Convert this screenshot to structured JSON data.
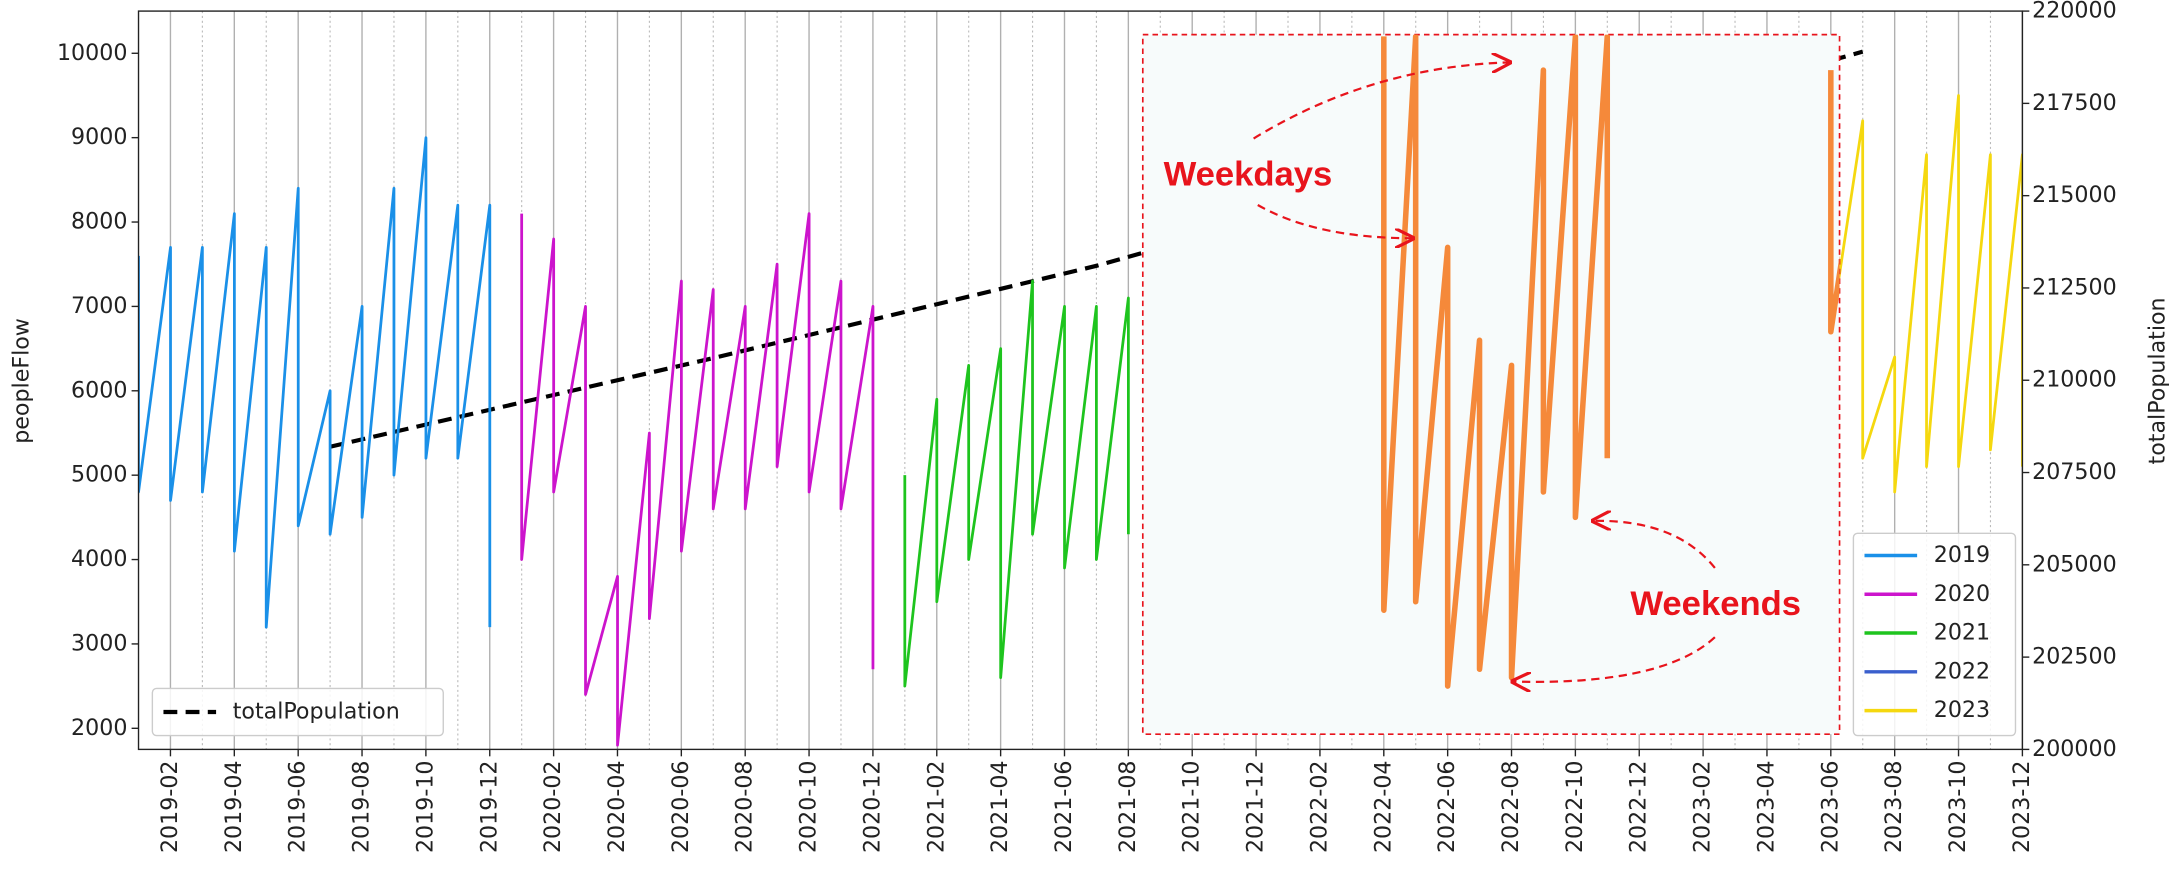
{
  "chart_data": {
    "type": "line",
    "ylabel": "peopleFlow",
    "y2label": "totalPopulation",
    "xlim": [
      "2019-01",
      "2023-12"
    ],
    "ylim": [
      1750,
      10500
    ],
    "y2lim": [
      200000,
      220000
    ],
    "yticks": [
      2000,
      3000,
      4000,
      5000,
      6000,
      7000,
      8000,
      9000,
      10000
    ],
    "y2ticks": [
      200000,
      202500,
      205000,
      207500,
      210000,
      212500,
      215000,
      217500,
      220000
    ],
    "xticks": [
      "2019-02",
      "2019-04",
      "2019-06",
      "2019-08",
      "2019-10",
      "2019-12",
      "2020-02",
      "2020-04",
      "2020-06",
      "2020-08",
      "2020-10",
      "2020-12",
      "2021-02",
      "2021-04",
      "2021-06",
      "2021-08",
      "2021-10",
      "2021-12",
      "2022-02",
      "2022-04",
      "2022-06",
      "2022-08",
      "2022-10",
      "2022-12",
      "2023-02",
      "2023-04",
      "2023-06",
      "2023-08",
      "2023-10",
      "2023-12"
    ],
    "xminorticks": [
      "2019-03",
      "2019-05",
      "2019-07",
      "2019-09",
      "2019-11",
      "2020-01",
      "2020-03",
      "2020-05",
      "2020-07",
      "2020-09",
      "2020-11",
      "2021-01",
      "2021-03",
      "2021-05",
      "2021-07",
      "2021-09",
      "2021-11",
      "2022-01",
      "2022-03",
      "2022-05",
      "2022-07",
      "2022-09",
      "2022-11",
      "2023-01",
      "2023-03",
      "2023-05",
      "2023-07",
      "2023-09",
      "2023-11"
    ],
    "grid": "x",
    "series": [
      {
        "name": "2019",
        "color": "#1a90e8",
        "x": [
          "2019-01",
          "2019-01",
          "2019-02",
          "2019-02",
          "2019-03",
          "2019-03",
          "2019-04",
          "2019-04",
          "2019-05",
          "2019-05",
          "2019-06",
          "2019-06",
          "2019-07",
          "2019-07",
          "2019-08",
          "2019-08",
          "2019-09",
          "2019-09",
          "2019-10",
          "2019-10",
          "2019-11",
          "2019-11",
          "2019-12",
          "2019-12"
        ],
        "values": [
          7600,
          4800,
          7700,
          4700,
          7700,
          4800,
          8100,
          4100,
          7700,
          3200,
          8400,
          4400,
          6000,
          4300,
          7000,
          4500,
          8400,
          5000,
          9000,
          5200,
          8200,
          5200,
          8200,
          3200
        ]
      },
      {
        "name": "2020",
        "color": "#cc14cc",
        "x": [
          "2020-01",
          "2020-01",
          "2020-02",
          "2020-02",
          "2020-03",
          "2020-03",
          "2020-04",
          "2020-04",
          "2020-05",
          "2020-05",
          "2020-06",
          "2020-06",
          "2020-07",
          "2020-07",
          "2020-08",
          "2020-08",
          "2020-09",
          "2020-09",
          "2020-10",
          "2020-10",
          "2020-11",
          "2020-11",
          "2020-12",
          "2020-12"
        ],
        "values": [
          8100,
          4000,
          7800,
          4800,
          7000,
          2400,
          3800,
          1800,
          5500,
          3300,
          7300,
          4100,
          7200,
          4600,
          7000,
          4600,
          7500,
          5100,
          8100,
          4800,
          7300,
          4600,
          7000,
          2700
        ]
      },
      {
        "name": "2021",
        "color": "#1ec41e",
        "x": [
          "2021-01",
          "2021-01",
          "2021-02",
          "2021-02",
          "2021-03",
          "2021-03",
          "2021-04",
          "2021-04",
          "2021-05",
          "2021-05",
          "2021-06",
          "2021-06",
          "2021-07",
          "2021-07",
          "2021-08",
          "2021-08"
        ],
        "values": [
          5000,
          2500,
          5900,
          3500,
          6300,
          4000,
          6500,
          2600,
          7300,
          4300,
          7000,
          3900,
          7000,
          4000,
          7100,
          4300
        ]
      },
      {
        "name": "2022",
        "color": "#3a5fcd",
        "x": [
          "2022-04",
          "2022-04",
          "2022-05",
          "2022-05",
          "2022-06",
          "2022-06",
          "2022-07",
          "2022-07",
          "2022-08",
          "2022-08",
          "2022-09",
          "2022-09",
          "2022-10",
          "2022-10",
          "2022-11",
          "2022-11"
        ],
        "values": [
          10200,
          3400,
          10200,
          3500,
          7700,
          2500,
          6600,
          2700,
          6300,
          2600,
          9800,
          4800,
          10200,
          4500,
          10200,
          5200
        ]
      },
      {
        "name": "2023",
        "color": "#f5d80f",
        "x": [
          "2023-06",
          "2023-06",
          "2023-07",
          "2023-07",
          "2023-08",
          "2023-08",
          "2023-09",
          "2023-09",
          "2023-10",
          "2023-10",
          "2023-11",
          "2023-11",
          "2023-12",
          "2023-12"
        ],
        "values": [
          9800,
          6700,
          9200,
          5200,
          6400,
          4800,
          8800,
          5100,
          9500,
          5100,
          8800,
          5300,
          8800,
          5100
        ]
      },
      {
        "name": "totalPopulation",
        "color": "#000000",
        "axis": "y2",
        "dashed": true,
        "x": [
          "2019-07",
          "2020-07",
          "2021-07",
          "2022-07",
          "2023-07"
        ],
        "values": [
          208200,
          210600,
          213100,
          216000,
          218900
        ]
      }
    ],
    "inset": {
      "color": "#f5893a"
    },
    "annotations": [
      "Weekdays",
      "Weekends"
    ]
  }
}
